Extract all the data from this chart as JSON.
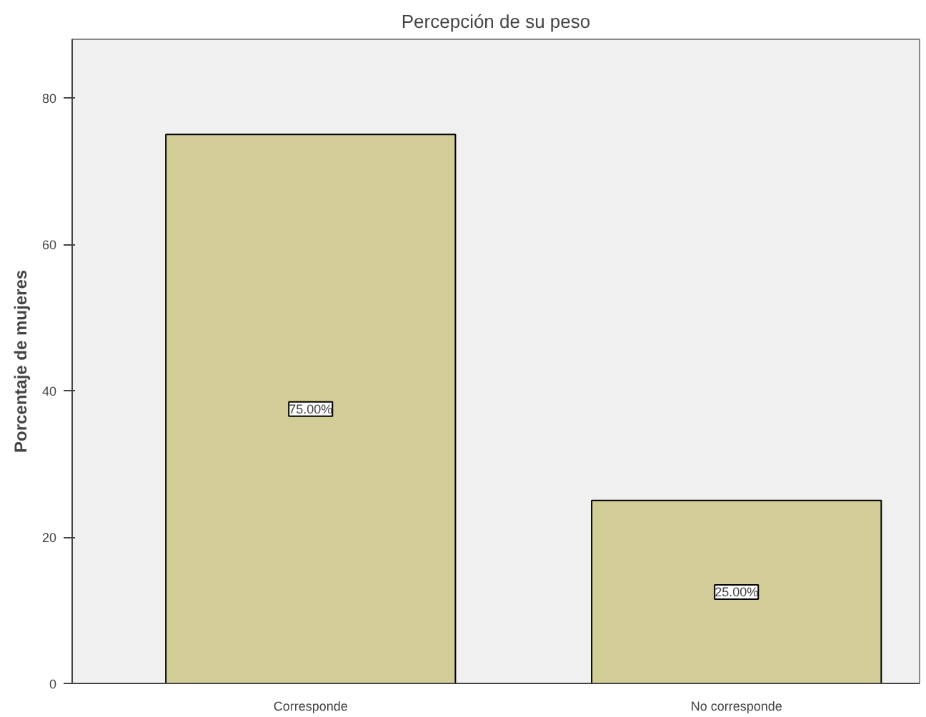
{
  "chart_data": {
    "type": "bar",
    "title": "Percepción de su peso",
    "ylabel": "Porcentaje de mujeres",
    "categories": [
      "Corresponde",
      "No corresponde"
    ],
    "values": [
      75,
      25
    ],
    "value_labels": [
      "75.00%",
      "25.00%"
    ],
    "color": "#d2cc96",
    "ylim": [
      0,
      88
    ],
    "yticks": [
      0,
      20,
      40,
      60,
      80
    ],
    "grid": false
  }
}
